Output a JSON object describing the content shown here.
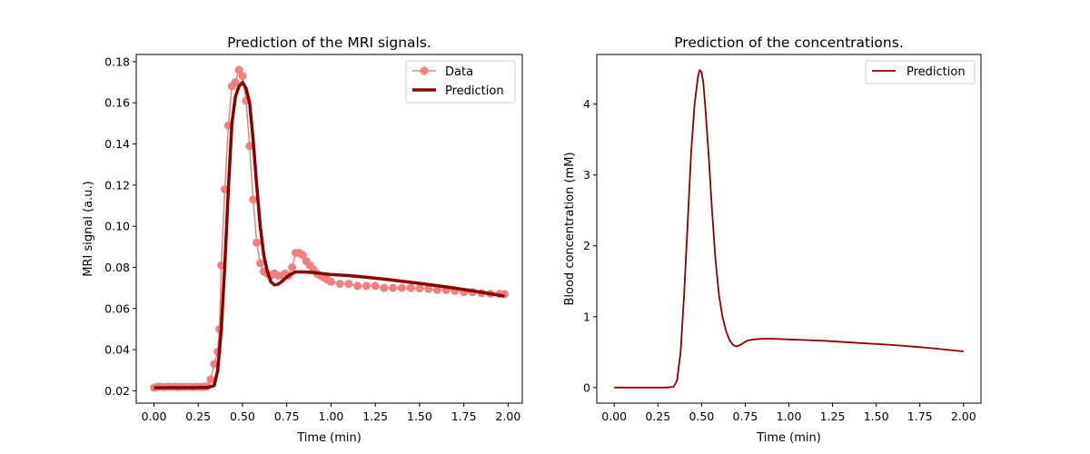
{
  "chart_data": [
    {
      "type": "line",
      "title": "Prediction of the MRI signals.",
      "xlabel": "Time (min)",
      "ylabel": "MRI signal (a.u.)",
      "xlim": [
        -0.1,
        2.08
      ],
      "ylim": [
        0.014,
        0.1835
      ],
      "xticks": [
        0.0,
        0.25,
        0.5,
        0.75,
        1.0,
        1.25,
        1.5,
        1.75,
        2.0
      ],
      "xtick_labels": [
        "0.00",
        "0.25",
        "0.50",
        "0.75",
        "1.00",
        "1.25",
        "1.50",
        "1.75",
        "2.00"
      ],
      "yticks": [
        0.02,
        0.04,
        0.06,
        0.08,
        0.1,
        0.12,
        0.14,
        0.16,
        0.18
      ],
      "ytick_labels": [
        "0.02",
        "0.04",
        "0.06",
        "0.08",
        "0.10",
        "0.12",
        "0.14",
        "0.16",
        "0.18"
      ],
      "legend_position": "top-right",
      "series": [
        {
          "name": "Data",
          "style": "line-marker",
          "color": "#f08080",
          "x": [
            0.0,
            0.02,
            0.04,
            0.06,
            0.08,
            0.1,
            0.12,
            0.14,
            0.16,
            0.18,
            0.2,
            0.22,
            0.24,
            0.26,
            0.28,
            0.3,
            0.32,
            0.34,
            0.36,
            0.37,
            0.38,
            0.4,
            0.42,
            0.44,
            0.46,
            0.48,
            0.5,
            0.52,
            0.54,
            0.56,
            0.58,
            0.6,
            0.62,
            0.64,
            0.66,
            0.68,
            0.7,
            0.72,
            0.74,
            0.76,
            0.78,
            0.8,
            0.82,
            0.84,
            0.86,
            0.88,
            0.9,
            0.92,
            0.94,
            0.96,
            0.98,
            1.0,
            1.05,
            1.1,
            1.15,
            1.2,
            1.25,
            1.3,
            1.35,
            1.4,
            1.45,
            1.5,
            1.55,
            1.6,
            1.65,
            1.7,
            1.75,
            1.8,
            1.85,
            1.9,
            1.95,
            1.98
          ],
          "y": [
            0.0215,
            0.022,
            0.022,
            0.0218,
            0.022,
            0.0219,
            0.022,
            0.0218,
            0.022,
            0.0219,
            0.022,
            0.0218,
            0.022,
            0.0219,
            0.022,
            0.0221,
            0.0255,
            0.033,
            0.039,
            0.05,
            0.081,
            0.118,
            0.149,
            0.168,
            0.17,
            0.176,
            0.173,
            0.161,
            0.139,
            0.113,
            0.092,
            0.082,
            0.078,
            0.077,
            0.076,
            0.077,
            0.076,
            0.076,
            0.077,
            0.076,
            0.08,
            0.087,
            0.087,
            0.086,
            0.083,
            0.081,
            0.079,
            0.077,
            0.076,
            0.075,
            0.074,
            0.073,
            0.072,
            0.072,
            0.071,
            0.071,
            0.071,
            0.07,
            0.07,
            0.07,
            0.07,
            0.0698,
            0.0695,
            0.069,
            0.069,
            0.0685,
            0.068,
            0.068,
            0.0675,
            0.0672,
            0.0671,
            0.067
          ]
        },
        {
          "name": "Prediction",
          "style": "line",
          "color": "#8b0000",
          "x": [
            0.0,
            0.1,
            0.2,
            0.3,
            0.34,
            0.36,
            0.38,
            0.4,
            0.42,
            0.44,
            0.46,
            0.48,
            0.5,
            0.52,
            0.54,
            0.56,
            0.58,
            0.6,
            0.62,
            0.64,
            0.66,
            0.68,
            0.7,
            0.72,
            0.74,
            0.76,
            0.78,
            0.8,
            0.85,
            0.9,
            0.95,
            1.0,
            1.1,
            1.2,
            1.3,
            1.4,
            1.5,
            1.6,
            1.7,
            1.8,
            1.9,
            1.98
          ],
          "y": [
            0.0215,
            0.0215,
            0.0215,
            0.0216,
            0.0225,
            0.03,
            0.05,
            0.081,
            0.118,
            0.15,
            0.163,
            0.168,
            0.17,
            0.167,
            0.16,
            0.142,
            0.12,
            0.1,
            0.086,
            0.078,
            0.073,
            0.0715,
            0.0718,
            0.073,
            0.0745,
            0.076,
            0.077,
            0.0778,
            0.0778,
            0.0775,
            0.077,
            0.0765,
            0.076,
            0.0752,
            0.0743,
            0.0733,
            0.0722,
            0.0711,
            0.0699,
            0.0686,
            0.0672,
            0.066
          ]
        }
      ]
    },
    {
      "type": "line",
      "title": "Prediction of the concentrations.",
      "xlabel": "Time (min)",
      "ylabel": "Blood concentration (mM)",
      "xlim": [
        -0.1,
        2.1
      ],
      "ylim": [
        -0.22,
        4.7
      ],
      "xticks": [
        0.0,
        0.25,
        0.5,
        0.75,
        1.0,
        1.25,
        1.5,
        1.75,
        2.0
      ],
      "xtick_labels": [
        "0.00",
        "0.25",
        "0.50",
        "0.75",
        "1.00",
        "1.25",
        "1.50",
        "1.75",
        "2.00"
      ],
      "yticks": [
        0,
        1,
        2,
        3,
        4
      ],
      "ytick_labels": [
        "0",
        "1",
        "2",
        "3",
        "4"
      ],
      "legend_position": "top-right",
      "series": [
        {
          "name": "Prediction",
          "style": "line",
          "color": "#8b0000",
          "x": [
            0.0,
            0.1,
            0.2,
            0.3,
            0.34,
            0.36,
            0.38,
            0.4,
            0.42,
            0.44,
            0.46,
            0.48,
            0.49,
            0.5,
            0.51,
            0.52,
            0.54,
            0.56,
            0.58,
            0.6,
            0.62,
            0.64,
            0.66,
            0.68,
            0.7,
            0.72,
            0.74,
            0.76,
            0.8,
            0.85,
            0.9,
            1.0,
            1.2,
            1.4,
            1.6,
            1.8,
            2.0
          ],
          "y": [
            0.0,
            0.0,
            0.0,
            0.0,
            0.01,
            0.1,
            0.5,
            1.3,
            2.3,
            3.3,
            4.0,
            4.4,
            4.48,
            4.45,
            4.3,
            4.0,
            3.3,
            2.5,
            1.8,
            1.3,
            1.0,
            0.8,
            0.67,
            0.6,
            0.58,
            0.6,
            0.63,
            0.66,
            0.68,
            0.69,
            0.69,
            0.68,
            0.66,
            0.63,
            0.6,
            0.56,
            0.51
          ]
        }
      ]
    }
  ]
}
